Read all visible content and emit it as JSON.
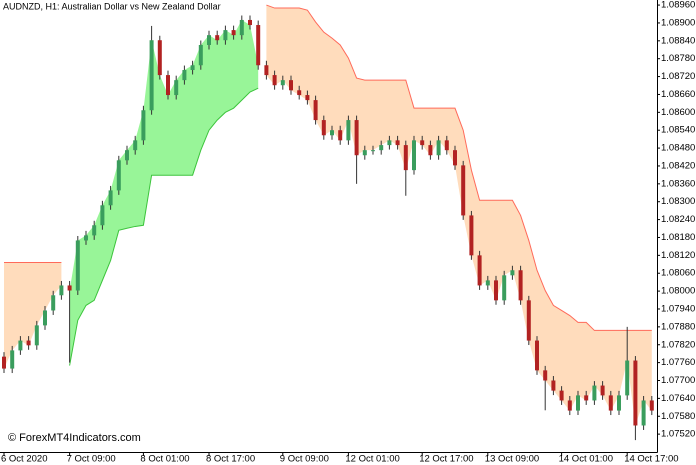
{
  "chart_data": {
    "type": "candlestick",
    "title": "AUDNZD, H1:  Australian Dollar vs New Zealand Dollar",
    "watermark": "© ForexMT4Indicators.com",
    "ylim": [
      1.0746,
      1.08977
    ],
    "yticks": [
      {
        "value": 1.0896,
        "label": "1.08960"
      },
      {
        "value": 1.089,
        "label": "1.08900"
      },
      {
        "value": 1.0884,
        "label": "1.08840"
      },
      {
        "value": 1.0878,
        "label": "1.08780"
      },
      {
        "value": 1.0872,
        "label": "1.08720"
      },
      {
        "value": 1.0866,
        "label": "1.08660"
      },
      {
        "value": 1.086,
        "label": "1.08600"
      },
      {
        "value": 1.0854,
        "label": "1.08540"
      },
      {
        "value": 1.0848,
        "label": "1.08480"
      },
      {
        "value": 1.0842,
        "label": "1.08420"
      },
      {
        "value": 1.0836,
        "label": "1.08360"
      },
      {
        "value": 1.083,
        "label": "1.08300"
      },
      {
        "value": 1.0824,
        "label": "1.08240"
      },
      {
        "value": 1.0818,
        "label": "1.08180"
      },
      {
        "value": 1.0812,
        "label": "1.08120"
      },
      {
        "value": 1.0806,
        "label": "1.08060"
      },
      {
        "value": 1.08,
        "label": "1.08000"
      },
      {
        "value": 1.0794,
        "label": "1.07940"
      },
      {
        "value": 1.0788,
        "label": "1.07880"
      },
      {
        "value": 1.0782,
        "label": "1.07820"
      },
      {
        "value": 1.0776,
        "label": "1.07760"
      },
      {
        "value": 1.077,
        "label": "1.07700"
      },
      {
        "value": 1.0764,
        "label": "1.07640"
      },
      {
        "value": 1.0758,
        "label": "1.07580"
      },
      {
        "value": 1.0752,
        "label": "1.07520"
      }
    ],
    "xticks": [
      {
        "value": 0,
        "label": "6 Oct 2020"
      },
      {
        "value": 8,
        "label": "7 Oct 09:00"
      },
      {
        "value": 17,
        "label": "8 Oct 01:00"
      },
      {
        "value": 25,
        "label": "8 Oct 17:00"
      },
      {
        "value": 34,
        "label": "9 Oct 09:00"
      },
      {
        "value": 42,
        "label": "12 Oct 01:00"
      },
      {
        "value": 51,
        "label": "12 Oct 17:00"
      },
      {
        "value": 59,
        "label": "13 Oct 09:00"
      },
      {
        "value": 68,
        "label": "14 Oct 01:00"
      },
      {
        "value": 76,
        "label": "14 Oct 17:00"
      }
    ],
    "up_color": "#3a9d5d",
    "down_color": "#b22222",
    "wick_color": "#333333",
    "candles": {
      "open": [
        1.0778,
        1.0774,
        1.07801,
        1.07834,
        1.07818,
        1.07885,
        1.07935,
        1.07986,
        1.08019,
        1.08002,
        1.0817,
        1.08187,
        1.08221,
        1.08288,
        1.08338,
        1.08439,
        1.08473,
        1.08506,
        1.08607,
        1.08842,
        1.08725,
        1.08658,
        1.08708,
        1.08742,
        1.08758,
        1.08826,
        1.08859,
        1.08842,
        1.08876,
        1.08859,
        1.0891,
        1.08893,
        1.08758,
        1.08725,
        1.08691,
        1.08708,
        1.08674,
        1.08658,
        1.08641,
        1.08574,
        1.08523,
        1.0854,
        1.08506,
        1.08574,
        1.08456,
        1.08473,
        1.08473,
        1.0849,
        1.08506,
        1.0849,
        1.08406,
        1.08506,
        1.0849,
        1.08456,
        1.08506,
        1.08473,
        1.08422,
        1.08254,
        1.0812,
        1.08019,
        1.08036,
        1.07969,
        1.08053,
        1.0807,
        1.07969,
        1.07834,
        1.07734,
        1.077,
        1.07666,
        1.07633,
        1.07599,
        1.0765,
        1.07633,
        1.07683,
        1.0765,
        1.07599,
        1.0765,
        1.07767,
        1.07549,
        1.07633
      ],
      "high": [
        1.07795,
        1.07816,
        1.07849,
        1.07849,
        1.079,
        1.0795,
        1.08001,
        1.08034,
        1.08034,
        1.08185,
        1.08202,
        1.08236,
        1.08303,
        1.08353,
        1.08454,
        1.08488,
        1.08521,
        1.08622,
        1.0889,
        1.08857,
        1.0874,
        1.08723,
        1.08757,
        1.08773,
        1.08841,
        1.08874,
        1.08874,
        1.08891,
        1.08891,
        1.08925,
        1.08925,
        1.08908,
        1.08773,
        1.0874,
        1.08723,
        1.08723,
        1.08689,
        1.08673,
        1.08656,
        1.08589,
        1.08555,
        1.08555,
        1.08589,
        1.08589,
        1.08488,
        1.08488,
        1.08505,
        1.08521,
        1.08521,
        1.08505,
        1.08521,
        1.08521,
        1.08505,
        1.08521,
        1.08521,
        1.08488,
        1.08437,
        1.08269,
        1.08135,
        1.08051,
        1.08051,
        1.08068,
        1.08085,
        1.08085,
        1.07984,
        1.07849,
        1.07749,
        1.07715,
        1.07681,
        1.07648,
        1.07665,
        1.07665,
        1.07698,
        1.07698,
        1.07665,
        1.07665,
        1.0788,
        1.07782,
        1.07648,
        1.07648
      ],
      "low": [
        1.07725,
        1.07725,
        1.07786,
        1.07803,
        1.07803,
        1.0787,
        1.0792,
        1.07971,
        1.0776,
        1.07987,
        1.08155,
        1.08172,
        1.08206,
        1.08273,
        1.08323,
        1.08424,
        1.08458,
        1.08491,
        1.08592,
        1.0871,
        1.08643,
        1.08643,
        1.08693,
        1.08727,
        1.08743,
        1.08811,
        1.08827,
        1.08827,
        1.08844,
        1.08844,
        1.08878,
        1.08743,
        1.0871,
        1.08676,
        1.08676,
        1.08659,
        1.08643,
        1.08626,
        1.08559,
        1.08508,
        1.08508,
        1.08491,
        1.08491,
        1.0836,
        1.08441,
        1.08458,
        1.08458,
        1.08475,
        1.08475,
        1.0832,
        1.08391,
        1.08475,
        1.08441,
        1.08441,
        1.08458,
        1.08407,
        1.08239,
        1.08105,
        1.08004,
        1.08004,
        1.07954,
        1.07954,
        1.08038,
        1.07954,
        1.07819,
        1.07719,
        1.076,
        1.07651,
        1.07618,
        1.07584,
        1.07584,
        1.07618,
        1.07618,
        1.07635,
        1.07584,
        1.07584,
        1.07635,
        1.075,
        1.07534,
        1.07584
      ],
      "close": [
        1.0774,
        1.07801,
        1.07834,
        1.07818,
        1.07885,
        1.07935,
        1.07986,
        1.08019,
        1.08002,
        1.0817,
        1.08187,
        1.08221,
        1.08288,
        1.08338,
        1.08439,
        1.08473,
        1.08506,
        1.08607,
        1.08842,
        1.08725,
        1.08658,
        1.08708,
        1.08742,
        1.08758,
        1.08826,
        1.08859,
        1.08842,
        1.08876,
        1.08859,
        1.0891,
        1.08893,
        1.08758,
        1.08725,
        1.08691,
        1.08708,
        1.08674,
        1.08658,
        1.08641,
        1.08574,
        1.08523,
        1.0854,
        1.08506,
        1.08574,
        1.08456,
        1.08473,
        1.08473,
        1.0849,
        1.08506,
        1.0849,
        1.08406,
        1.08506,
        1.0849,
        1.08456,
        1.08506,
        1.08473,
        1.08422,
        1.08254,
        1.0812,
        1.08019,
        1.08036,
        1.07969,
        1.08053,
        1.0807,
        1.07969,
        1.07834,
        1.07734,
        1.077,
        1.07666,
        1.07633,
        1.07599,
        1.0765,
        1.07633,
        1.07683,
        1.0765,
        1.07599,
        1.0765,
        1.07767,
        1.07549,
        1.07633,
        1.07599
      ]
    },
    "upper_band": {
      "line_color": "#ff6a5a",
      "fill_color": "#ffdcbc",
      "values": [
        1.08096,
        1.08096,
        1.08096,
        1.08096,
        1.08096,
        1.08096,
        1.08096,
        1.08096,
        null,
        null,
        null,
        null,
        null,
        null,
        null,
        null,
        null,
        null,
        null,
        null,
        null,
        null,
        null,
        null,
        null,
        null,
        null,
        null,
        null,
        null,
        null,
        null,
        1.0896,
        1.0895,
        1.0895,
        1.0895,
        1.0895,
        1.08943,
        1.08903,
        1.08869,
        1.08849,
        1.08826,
        1.08782,
        1.08715,
        1.08708,
        1.08708,
        1.08708,
        1.08708,
        1.08708,
        1.08708,
        1.08614,
        1.08614,
        1.08614,
        1.08614,
        1.08614,
        1.08614,
        1.0854,
        1.08406,
        1.08305,
        1.08305,
        1.08305,
        1.08305,
        1.08305,
        1.08254,
        1.0817,
        1.0807,
        1.08002,
        1.07952,
        1.07935,
        1.07918,
        1.07895,
        1.07895,
        1.07868,
        1.07868,
        1.07868,
        1.07868,
        1.07868,
        1.07868,
        1.07868,
        1.07868
      ]
    },
    "lower_band": {
      "line_color": "#3cc43c",
      "fill_color": "#98f598",
      "values": [
        null,
        null,
        null,
        null,
        null,
        null,
        null,
        null,
        1.0775,
        1.07902,
        1.07952,
        1.07969,
        1.08036,
        1.08103,
        1.08204,
        1.08211,
        1.08217,
        1.08221,
        1.08389,
        1.08389,
        1.08389,
        1.08389,
        1.08389,
        1.08389,
        1.08473,
        1.0854,
        1.08574,
        1.086,
        1.08614,
        1.08641,
        1.08668,
        1.08681,
        null,
        null,
        null,
        null,
        null,
        null,
        null,
        null,
        null,
        null,
        null,
        null,
        null,
        null,
        null,
        null,
        null,
        null,
        null,
        null,
        null,
        null,
        null,
        null,
        null,
        null,
        null,
        null,
        null,
        null,
        null,
        null,
        null,
        null,
        null,
        null,
        null,
        null,
        null,
        null,
        null,
        null,
        null,
        null,
        null,
        null,
        null,
        null
      ]
    }
  }
}
